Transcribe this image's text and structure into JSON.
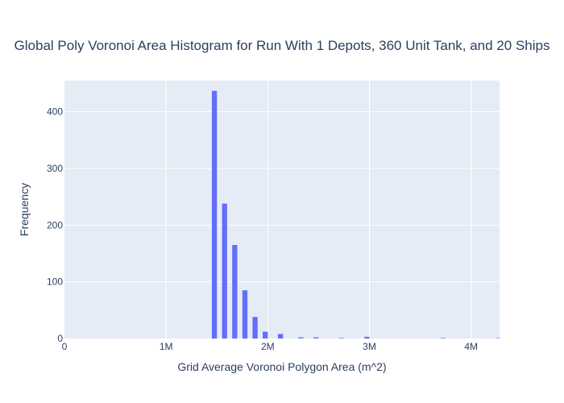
{
  "chart_data": {
    "type": "bar",
    "title": "Global Poly Voronoi Area Histogram for Run With 1 Depots, 360 Unit Tank, and 20 Ships",
    "xlabel": "Grid Average Voronoi Polygon Area (m^2)",
    "ylabel": "Frequency",
    "xlim": [
      0,
      4280000
    ],
    "ylim": [
      0,
      455
    ],
    "x_ticks": [
      {
        "value": 0,
        "label": "0"
      },
      {
        "value": 1000000,
        "label": "1M"
      },
      {
        "value": 2000000,
        "label": "2M"
      },
      {
        "value": 3000000,
        "label": "3M"
      },
      {
        "value": 4000000,
        "label": "4M"
      }
    ],
    "y_ticks": [
      {
        "value": 0,
        "label": "0"
      },
      {
        "value": 100,
        "label": "100"
      },
      {
        "value": 200,
        "label": "200"
      },
      {
        "value": 300,
        "label": "300"
      },
      {
        "value": 400,
        "label": "400"
      }
    ],
    "bin_width": 50000,
    "bins": [
      {
        "x0": 1450000,
        "x1": 1500000,
        "count": 437
      },
      {
        "x0": 1550000,
        "x1": 1600000,
        "count": 238
      },
      {
        "x0": 1650000,
        "x1": 1700000,
        "count": 165
      },
      {
        "x0": 1750000,
        "x1": 1800000,
        "count": 85
      },
      {
        "x0": 1850000,
        "x1": 1900000,
        "count": 38
      },
      {
        "x0": 1950000,
        "x1": 2000000,
        "count": 12
      },
      {
        "x0": 2100000,
        "x1": 2150000,
        "count": 8
      },
      {
        "x0": 2300000,
        "x1": 2350000,
        "count": 2
      },
      {
        "x0": 2450000,
        "x1": 2500000,
        "count": 2
      },
      {
        "x0": 2700000,
        "x1": 2750000,
        "count": 1
      },
      {
        "x0": 2950000,
        "x1": 3000000,
        "count": 3
      },
      {
        "x0": 3700000,
        "x1": 3750000,
        "count": 1
      },
      {
        "x0": 4250000,
        "x1": 4300000,
        "count": 1
      }
    ],
    "bar_color": "#636efa",
    "plot_bg": "#e5ecf6",
    "grid": true
  }
}
